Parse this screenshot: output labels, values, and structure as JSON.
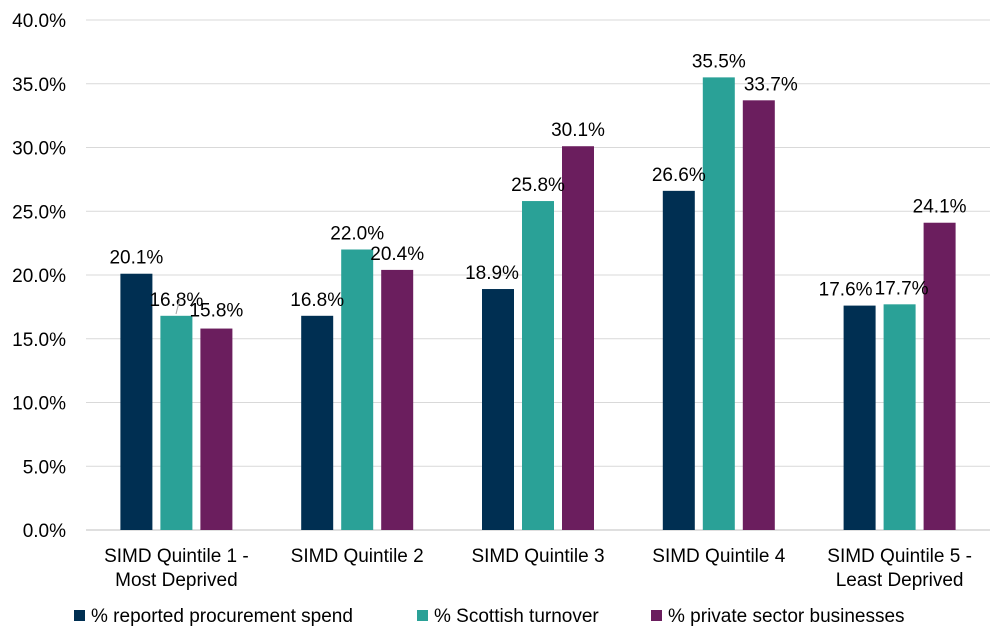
{
  "chart_data": {
    "type": "bar",
    "categories": [
      [
        "SIMD Quintile 1 -",
        "Most Deprived"
      ],
      [
        "SIMD Quintile 2"
      ],
      [
        "SIMD Quintile 3"
      ],
      [
        "SIMD Quintile 4"
      ],
      [
        "SIMD Quintile 5 -",
        "Least Deprived"
      ]
    ],
    "series": [
      {
        "name": "% reported procurement spend",
        "color": "#002f52",
        "values": [
          20.1,
          16.8,
          18.9,
          26.6,
          17.6
        ],
        "labels": [
          "20.1%",
          "16.8%",
          "18.9%",
          "26.6%",
          "17.6%"
        ]
      },
      {
        "name": "% Scottish turnover",
        "color": "#2aa197",
        "values": [
          16.8,
          22.0,
          25.8,
          35.5,
          17.7
        ],
        "labels": [
          "16.8%",
          "22.0%",
          "25.8%",
          "35.5%",
          "17.7%"
        ]
      },
      {
        "name": "% private sector businesses",
        "color": "#6b1e5e",
        "values": [
          15.8,
          20.4,
          30.1,
          33.7,
          24.1
        ],
        "labels": [
          "15.8%",
          "20.4%",
          "30.1%",
          "33.7%",
          "24.1%"
        ]
      }
    ],
    "y_ticks": [
      "0.0%",
      "5.0%",
      "10.0%",
      "15.0%",
      "20.0%",
      "25.0%",
      "30.0%",
      "35.0%",
      "40.0%"
    ],
    "ylim": [
      0,
      40
    ],
    "title": "",
    "xlabel": "",
    "ylabel": "",
    "grid": true,
    "legend_position": "bottom"
  }
}
